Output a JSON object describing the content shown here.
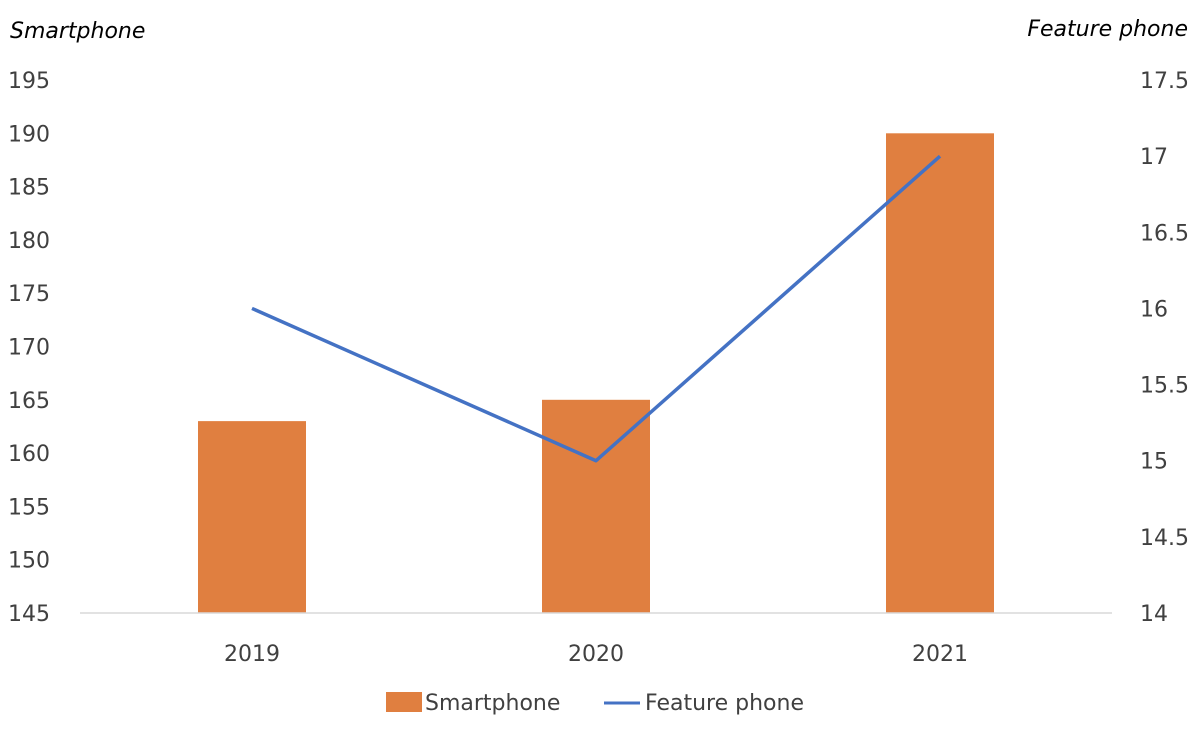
{
  "chart_data": {
    "type": "bar",
    "categories": [
      "2019",
      "2020",
      "2021"
    ],
    "series": [
      {
        "name": "Smartphone",
        "type": "bar",
        "axis": "left",
        "values": [
          163,
          165,
          190
        ],
        "color": "#E07F40"
      },
      {
        "name": "Feature phone",
        "type": "line",
        "axis": "right",
        "values": [
          16,
          15,
          17
        ],
        "color": "#4472C4"
      }
    ],
    "left_axis": {
      "title": "Smartphone",
      "ylim": [
        145,
        195
      ],
      "ticks": [
        "145",
        "150",
        "155",
        "160",
        "165",
        "170",
        "175",
        "180",
        "185",
        "190",
        "195"
      ]
    },
    "right_axis": {
      "title": "Feature phone",
      "ylim": [
        14,
        17.5
      ],
      "ticks": [
        "14",
        "14.5",
        "15",
        "15.5",
        "16",
        "16.5",
        "17",
        "17.5"
      ]
    },
    "grid": false,
    "legend": "bottom"
  }
}
